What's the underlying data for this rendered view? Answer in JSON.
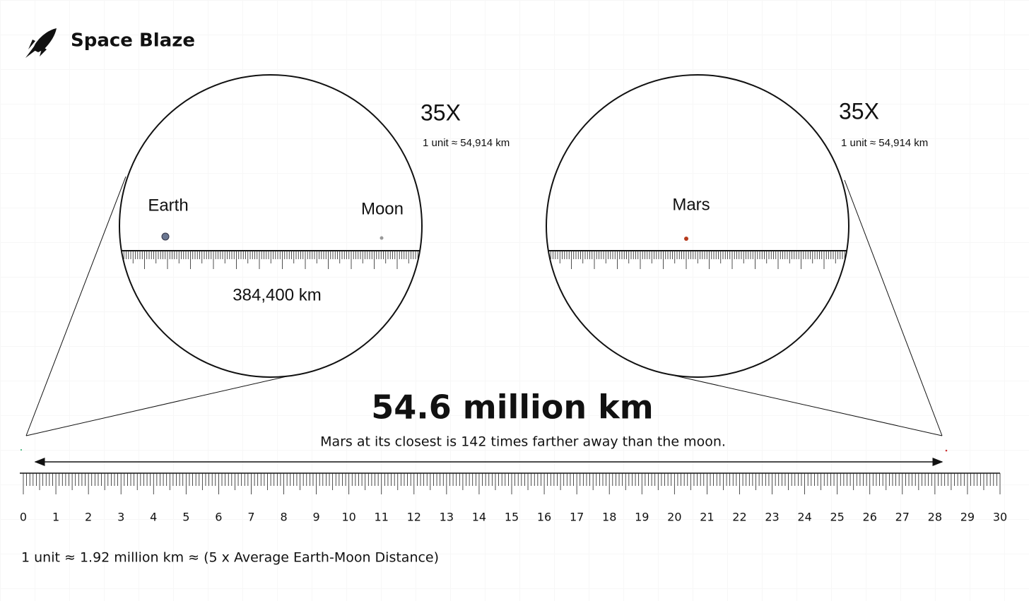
{
  "brand": "Space Blaze",
  "zoom_left": {
    "scale": "35X",
    "unit": "1 unit ≈ 54,914 km",
    "labels": [
      "Earth",
      "Moon"
    ],
    "distance": "384,400 km"
  },
  "zoom_right": {
    "scale": "35X",
    "unit": "1 unit ≈ 54,914 km",
    "labels": [
      "Mars"
    ]
  },
  "headline": "54.6 million km",
  "subtitle": "Mars at its closest is 142 times farther away than the moon.",
  "ruler": {
    "ticks": [
      0,
      1,
      2,
      3,
      4,
      5,
      6,
      7,
      8,
      9,
      10,
      11,
      12,
      13,
      14,
      15,
      16,
      17,
      18,
      19,
      20,
      21,
      22,
      23,
      24,
      25,
      26,
      27,
      28,
      29,
      30
    ]
  },
  "footnote": "1 unit ≈ 1.92 million km ≈ (5 x Average Earth-Moon Distance)"
}
